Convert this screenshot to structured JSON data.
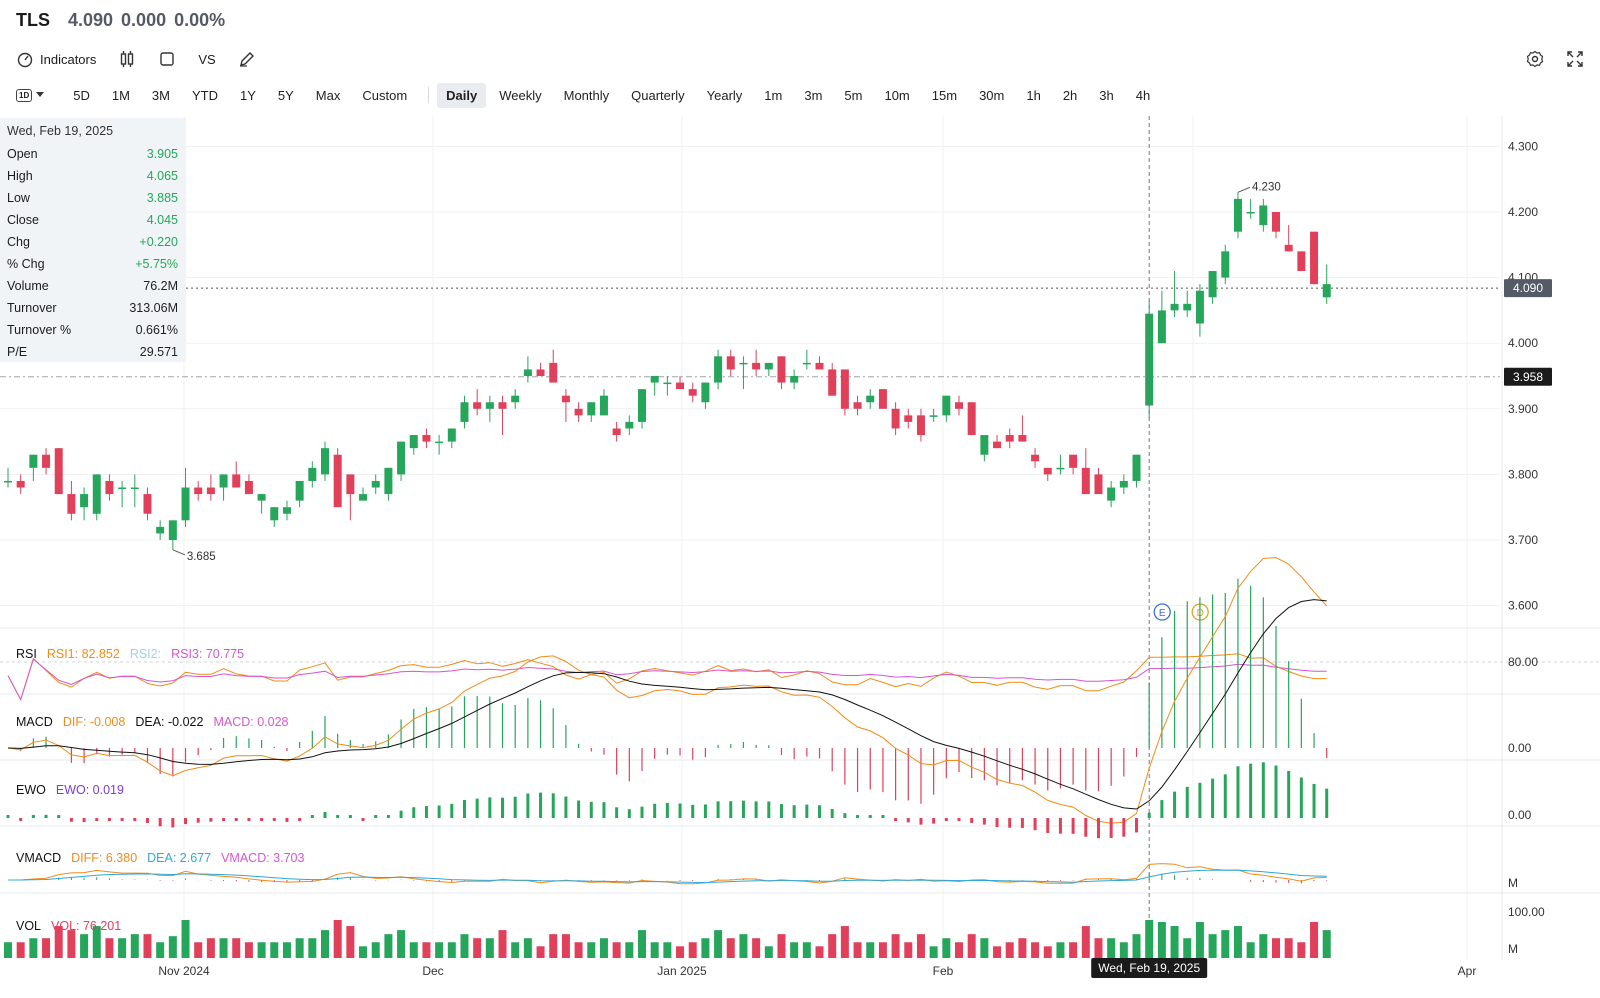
{
  "header": {
    "symbol": "TLS",
    "price": "4.090",
    "change": "0.000",
    "change_pct": "0.00%"
  },
  "toolbar": {
    "indicators": "Indicators",
    "vs": "VS",
    "icons": [
      "indicators-icon",
      "candles-icon",
      "square-icon",
      "pencil-icon",
      "gear-icon",
      "fullscreen-icon"
    ]
  },
  "periods": [
    "5D",
    "1M",
    "3M",
    "YTD",
    "1Y",
    "5Y",
    "Max",
    "Custom"
  ],
  "intervals": [
    "Daily",
    "Weekly",
    "Monthly",
    "Quarterly",
    "Yearly",
    "1m",
    "3m",
    "5m",
    "10m",
    "15m",
    "30m",
    "1h",
    "2h",
    "3h",
    "4h"
  ],
  "interval_badge": "1D",
  "active_interval": "Daily",
  "info": {
    "date": "Wed, Feb 19, 2025",
    "rows": [
      {
        "label": "Open",
        "value": "3.905",
        "tone": "up"
      },
      {
        "label": "High",
        "value": "4.065",
        "tone": "up"
      },
      {
        "label": "Low",
        "value": "3.885",
        "tone": "up"
      },
      {
        "label": "Close",
        "value": "4.045",
        "tone": "up"
      },
      {
        "label": "Chg",
        "value": "+0.220",
        "tone": "up"
      },
      {
        "label": "% Chg",
        "value": "+5.75%",
        "tone": "up"
      },
      {
        "label": "Volume",
        "value": "76.2M",
        "tone": "neu"
      },
      {
        "label": "Turnover",
        "value": "313.06M",
        "tone": "neu"
      },
      {
        "label": "Turnover %",
        "value": "0.661%",
        "tone": "neu"
      },
      {
        "label": "P/E",
        "value": "29.571",
        "tone": "neu"
      }
    ]
  },
  "indicators": {
    "rsi": {
      "name": "RSI",
      "v1": "RSI1: 82.852",
      "v2": "RSI2:",
      "v3": "RSI3: 70.775"
    },
    "macd": {
      "name": "MACD",
      "dif": "DIF: -0.008",
      "dea": "DEA: -0.022",
      "macd": "MACD: 0.028"
    },
    "ewo": {
      "name": "EWO",
      "ewo": "EWO: 0.019"
    },
    "vmacd": {
      "name": "VMACD",
      "diff": "DIFF: 6.380",
      "dea": "DEA: 2.677",
      "vmacd": "VMACD: 3.703"
    },
    "vol": {
      "name": "VOL",
      "vol": "VOL: 76.201"
    }
  },
  "colors": {
    "up": "#26a65b",
    "down": "#e0405a",
    "orange": "#f08c1a",
    "pink": "#d455d4",
    "blue": "#2ea8d9",
    "lightblue": "#9ed0ee",
    "purple": "#7d3cd6"
  },
  "chart_data": {
    "type": "candlestick",
    "x_ticks": [
      "Nov 2024",
      "Dec",
      "Jan 2025",
      "Feb",
      "Mar",
      "Apr"
    ],
    "y_ticks": [
      "4.300",
      "4.200",
      "4.100",
      "4.000",
      "3.900",
      "3.800",
      "3.700",
      "3.600"
    ],
    "ylim": [
      3.6,
      4.3
    ],
    "last_price": "4.090",
    "ref_price": "3.958",
    "max_label": "4.230",
    "min_label": "3.685",
    "crosshair_date": "Wed, Feb 19, 2025",
    "event_markers": [
      "E",
      "D"
    ],
    "rsi_ticks": [
      "80.00"
    ],
    "macd_ticks": [
      "0.00"
    ],
    "ewo_ticks": [
      "0.00"
    ],
    "vmacd_ticks": [
      "M"
    ],
    "vol_ticks": [
      "100.00",
      "M"
    ],
    "candles": [
      {
        "o": 3.79,
        "h": 3.81,
        "l": 3.78,
        "c": 3.79
      },
      {
        "o": 3.79,
        "h": 3.8,
        "l": 3.77,
        "c": 3.78
      },
      {
        "o": 3.81,
        "h": 3.83,
        "l": 3.79,
        "c": 3.83
      },
      {
        "o": 3.83,
        "h": 3.84,
        "l": 3.8,
        "c": 3.81
      },
      {
        "o": 3.84,
        "h": 3.84,
        "l": 3.77,
        "c": 3.77
      },
      {
        "o": 3.77,
        "h": 3.79,
        "l": 3.73,
        "c": 3.74
      },
      {
        "o": 3.75,
        "h": 3.78,
        "l": 3.73,
        "c": 3.77
      },
      {
        "o": 3.74,
        "h": 3.8,
        "l": 3.73,
        "c": 3.8
      },
      {
        "o": 3.79,
        "h": 3.8,
        "l": 3.76,
        "c": 3.77
      },
      {
        "o": 3.78,
        "h": 3.79,
        "l": 3.75,
        "c": 3.78
      },
      {
        "o": 3.78,
        "h": 3.8,
        "l": 3.75,
        "c": 3.78
      },
      {
        "o": 3.77,
        "h": 3.78,
        "l": 3.73,
        "c": 3.74
      },
      {
        "o": 3.71,
        "h": 3.73,
        "l": 3.7,
        "c": 3.72
      },
      {
        "o": 3.7,
        "h": 3.73,
        "l": 3.685,
        "c": 3.73
      },
      {
        "o": 3.73,
        "h": 3.81,
        "l": 3.72,
        "c": 3.78
      },
      {
        "o": 3.78,
        "h": 3.79,
        "l": 3.76,
        "c": 3.77
      },
      {
        "o": 3.78,
        "h": 3.8,
        "l": 3.76,
        "c": 3.77
      },
      {
        "o": 3.78,
        "h": 3.8,
        "l": 3.76,
        "c": 3.8
      },
      {
        "o": 3.8,
        "h": 3.82,
        "l": 3.78,
        "c": 3.78
      },
      {
        "o": 3.79,
        "h": 3.8,
        "l": 3.77,
        "c": 3.77
      },
      {
        "o": 3.76,
        "h": 3.77,
        "l": 3.74,
        "c": 3.77
      },
      {
        "o": 3.73,
        "h": 3.75,
        "l": 3.72,
        "c": 3.75
      },
      {
        "o": 3.74,
        "h": 3.76,
        "l": 3.73,
        "c": 3.75
      },
      {
        "o": 3.76,
        "h": 3.79,
        "l": 3.75,
        "c": 3.79
      },
      {
        "o": 3.79,
        "h": 3.82,
        "l": 3.78,
        "c": 3.81
      },
      {
        "o": 3.8,
        "h": 3.85,
        "l": 3.79,
        "c": 3.84
      },
      {
        "o": 3.83,
        "h": 3.84,
        "l": 3.75,
        "c": 3.75
      },
      {
        "o": 3.8,
        "h": 3.8,
        "l": 3.73,
        "c": 3.77
      },
      {
        "o": 3.76,
        "h": 3.78,
        "l": 3.76,
        "c": 3.77
      },
      {
        "o": 3.78,
        "h": 3.8,
        "l": 3.77,
        "c": 3.79
      },
      {
        "o": 3.77,
        "h": 3.81,
        "l": 3.76,
        "c": 3.81
      },
      {
        "o": 3.8,
        "h": 3.85,
        "l": 3.79,
        "c": 3.85
      },
      {
        "o": 3.84,
        "h": 3.86,
        "l": 3.83,
        "c": 3.86
      },
      {
        "o": 3.86,
        "h": 3.87,
        "l": 3.84,
        "c": 3.85
      },
      {
        "o": 3.85,
        "h": 3.86,
        "l": 3.83,
        "c": 3.85
      },
      {
        "o": 3.85,
        "h": 3.87,
        "l": 3.84,
        "c": 3.87
      },
      {
        "o": 3.88,
        "h": 3.92,
        "l": 3.87,
        "c": 3.91
      },
      {
        "o": 3.91,
        "h": 3.93,
        "l": 3.89,
        "c": 3.9
      },
      {
        "o": 3.9,
        "h": 3.92,
        "l": 3.88,
        "c": 3.91
      },
      {
        "o": 3.91,
        "h": 3.92,
        "l": 3.86,
        "c": 3.9
      },
      {
        "o": 3.91,
        "h": 3.93,
        "l": 3.9,
        "c": 3.92
      },
      {
        "o": 3.95,
        "h": 3.98,
        "l": 3.94,
        "c": 3.96
      },
      {
        "o": 3.96,
        "h": 3.97,
        "l": 3.95,
        "c": 3.95
      },
      {
        "o": 3.97,
        "h": 3.99,
        "l": 3.94,
        "c": 3.94
      },
      {
        "o": 3.92,
        "h": 3.93,
        "l": 3.88,
        "c": 3.91
      },
      {
        "o": 3.9,
        "h": 3.91,
        "l": 3.88,
        "c": 3.89
      },
      {
        "o": 3.89,
        "h": 3.91,
        "l": 3.88,
        "c": 3.91
      },
      {
        "o": 3.89,
        "h": 3.93,
        "l": 3.89,
        "c": 3.92
      },
      {
        "o": 3.87,
        "h": 3.88,
        "l": 3.85,
        "c": 3.86
      },
      {
        "o": 3.87,
        "h": 3.89,
        "l": 3.86,
        "c": 3.88
      },
      {
        "o": 3.88,
        "h": 3.93,
        "l": 3.87,
        "c": 3.93
      },
      {
        "o": 3.94,
        "h": 3.95,
        "l": 3.92,
        "c": 3.95
      },
      {
        "o": 3.94,
        "h": 3.95,
        "l": 3.92,
        "c": 3.94
      },
      {
        "o": 3.94,
        "h": 3.95,
        "l": 3.93,
        "c": 3.93
      },
      {
        "o": 3.93,
        "h": 3.94,
        "l": 3.91,
        "c": 3.92
      },
      {
        "o": 3.91,
        "h": 3.94,
        "l": 3.9,
        "c": 3.94
      },
      {
        "o": 3.94,
        "h": 3.99,
        "l": 3.93,
        "c": 3.98
      },
      {
        "o": 3.98,
        "h": 3.99,
        "l": 3.95,
        "c": 3.96
      },
      {
        "o": 3.97,
        "h": 3.98,
        "l": 3.93,
        "c": 3.97
      },
      {
        "o": 3.97,
        "h": 3.99,
        "l": 3.95,
        "c": 3.96
      },
      {
        "o": 3.96,
        "h": 3.97,
        "l": 3.95,
        "c": 3.97
      },
      {
        "o": 3.98,
        "h": 3.98,
        "l": 3.93,
        "c": 3.94
      },
      {
        "o": 3.94,
        "h": 3.96,
        "l": 3.93,
        "c": 3.95
      },
      {
        "o": 3.97,
        "h": 3.99,
        "l": 3.96,
        "c": 3.97
      },
      {
        "o": 3.97,
        "h": 3.98,
        "l": 3.96,
        "c": 3.96
      },
      {
        "o": 3.96,
        "h": 3.97,
        "l": 3.92,
        "c": 3.92
      },
      {
        "o": 3.96,
        "h": 3.96,
        "l": 3.89,
        "c": 3.9
      },
      {
        "o": 3.91,
        "h": 3.92,
        "l": 3.89,
        "c": 3.9
      },
      {
        "o": 3.91,
        "h": 3.93,
        "l": 3.9,
        "c": 3.92
      },
      {
        "o": 3.93,
        "h": 3.93,
        "l": 3.9,
        "c": 3.9
      },
      {
        "o": 3.9,
        "h": 3.91,
        "l": 3.86,
        "c": 3.87
      },
      {
        "o": 3.89,
        "h": 3.9,
        "l": 3.87,
        "c": 3.88
      },
      {
        "o": 3.89,
        "h": 3.9,
        "l": 3.85,
        "c": 3.86
      },
      {
        "o": 3.89,
        "h": 3.9,
        "l": 3.88,
        "c": 3.89
      },
      {
        "o": 3.89,
        "h": 3.92,
        "l": 3.88,
        "c": 3.92
      },
      {
        "o": 3.91,
        "h": 3.92,
        "l": 3.89,
        "c": 3.9
      },
      {
        "o": 3.91,
        "h": 3.91,
        "l": 3.86,
        "c": 3.86
      },
      {
        "o": 3.83,
        "h": 3.86,
        "l": 3.82,
        "c": 3.86
      },
      {
        "o": 3.85,
        "h": 3.86,
        "l": 3.84,
        "c": 3.84
      },
      {
        "o": 3.86,
        "h": 3.87,
        "l": 3.84,
        "c": 3.85
      },
      {
        "o": 3.86,
        "h": 3.89,
        "l": 3.85,
        "c": 3.85
      },
      {
        "o": 3.83,
        "h": 3.84,
        "l": 3.81,
        "c": 3.82
      },
      {
        "o": 3.81,
        "h": 3.81,
        "l": 3.79,
        "c": 3.8
      },
      {
        "o": 3.81,
        "h": 3.83,
        "l": 3.8,
        "c": 3.81
      },
      {
        "o": 3.83,
        "h": 3.83,
        "l": 3.8,
        "c": 3.81
      },
      {
        "o": 3.81,
        "h": 3.84,
        "l": 3.77,
        "c": 3.77
      },
      {
        "o": 3.8,
        "h": 3.81,
        "l": 3.77,
        "c": 3.77
      },
      {
        "o": 3.76,
        "h": 3.79,
        "l": 3.75,
        "c": 3.78
      },
      {
        "o": 3.78,
        "h": 3.8,
        "l": 3.77,
        "c": 3.79
      },
      {
        "o": 3.79,
        "h": 3.83,
        "l": 3.78,
        "c": 3.83
      },
      {
        "o": 3.905,
        "h": 4.065,
        "l": 3.885,
        "c": 4.045
      },
      {
        "o": 4.0,
        "h": 4.08,
        "l": 4.0,
        "c": 4.05
      },
      {
        "o": 4.05,
        "h": 4.11,
        "l": 4.04,
        "c": 4.06
      },
      {
        "o": 4.05,
        "h": 4.08,
        "l": 4.04,
        "c": 4.06
      },
      {
        "o": 4.03,
        "h": 4.09,
        "l": 4.01,
        "c": 4.08
      },
      {
        "o": 4.07,
        "h": 4.11,
        "l": 4.06,
        "c": 4.11
      },
      {
        "o": 4.1,
        "h": 4.15,
        "l": 4.09,
        "c": 4.14
      },
      {
        "o": 4.17,
        "h": 4.23,
        "l": 4.16,
        "c": 4.22
      },
      {
        "o": 4.2,
        "h": 4.22,
        "l": 4.19,
        "c": 4.2
      },
      {
        "o": 4.18,
        "h": 4.22,
        "l": 4.17,
        "c": 4.21
      },
      {
        "o": 4.2,
        "h": 4.2,
        "l": 4.16,
        "c": 4.17
      },
      {
        "o": 4.15,
        "h": 4.18,
        "l": 4.14,
        "c": 4.14
      },
      {
        "o": 4.14,
        "h": 4.14,
        "l": 4.11,
        "c": 4.11
      },
      {
        "o": 4.17,
        "h": 4.17,
        "l": 4.09,
        "c": 4.09
      },
      {
        "o": 4.07,
        "h": 4.12,
        "l": 4.06,
        "c": 4.09
      }
    ]
  }
}
